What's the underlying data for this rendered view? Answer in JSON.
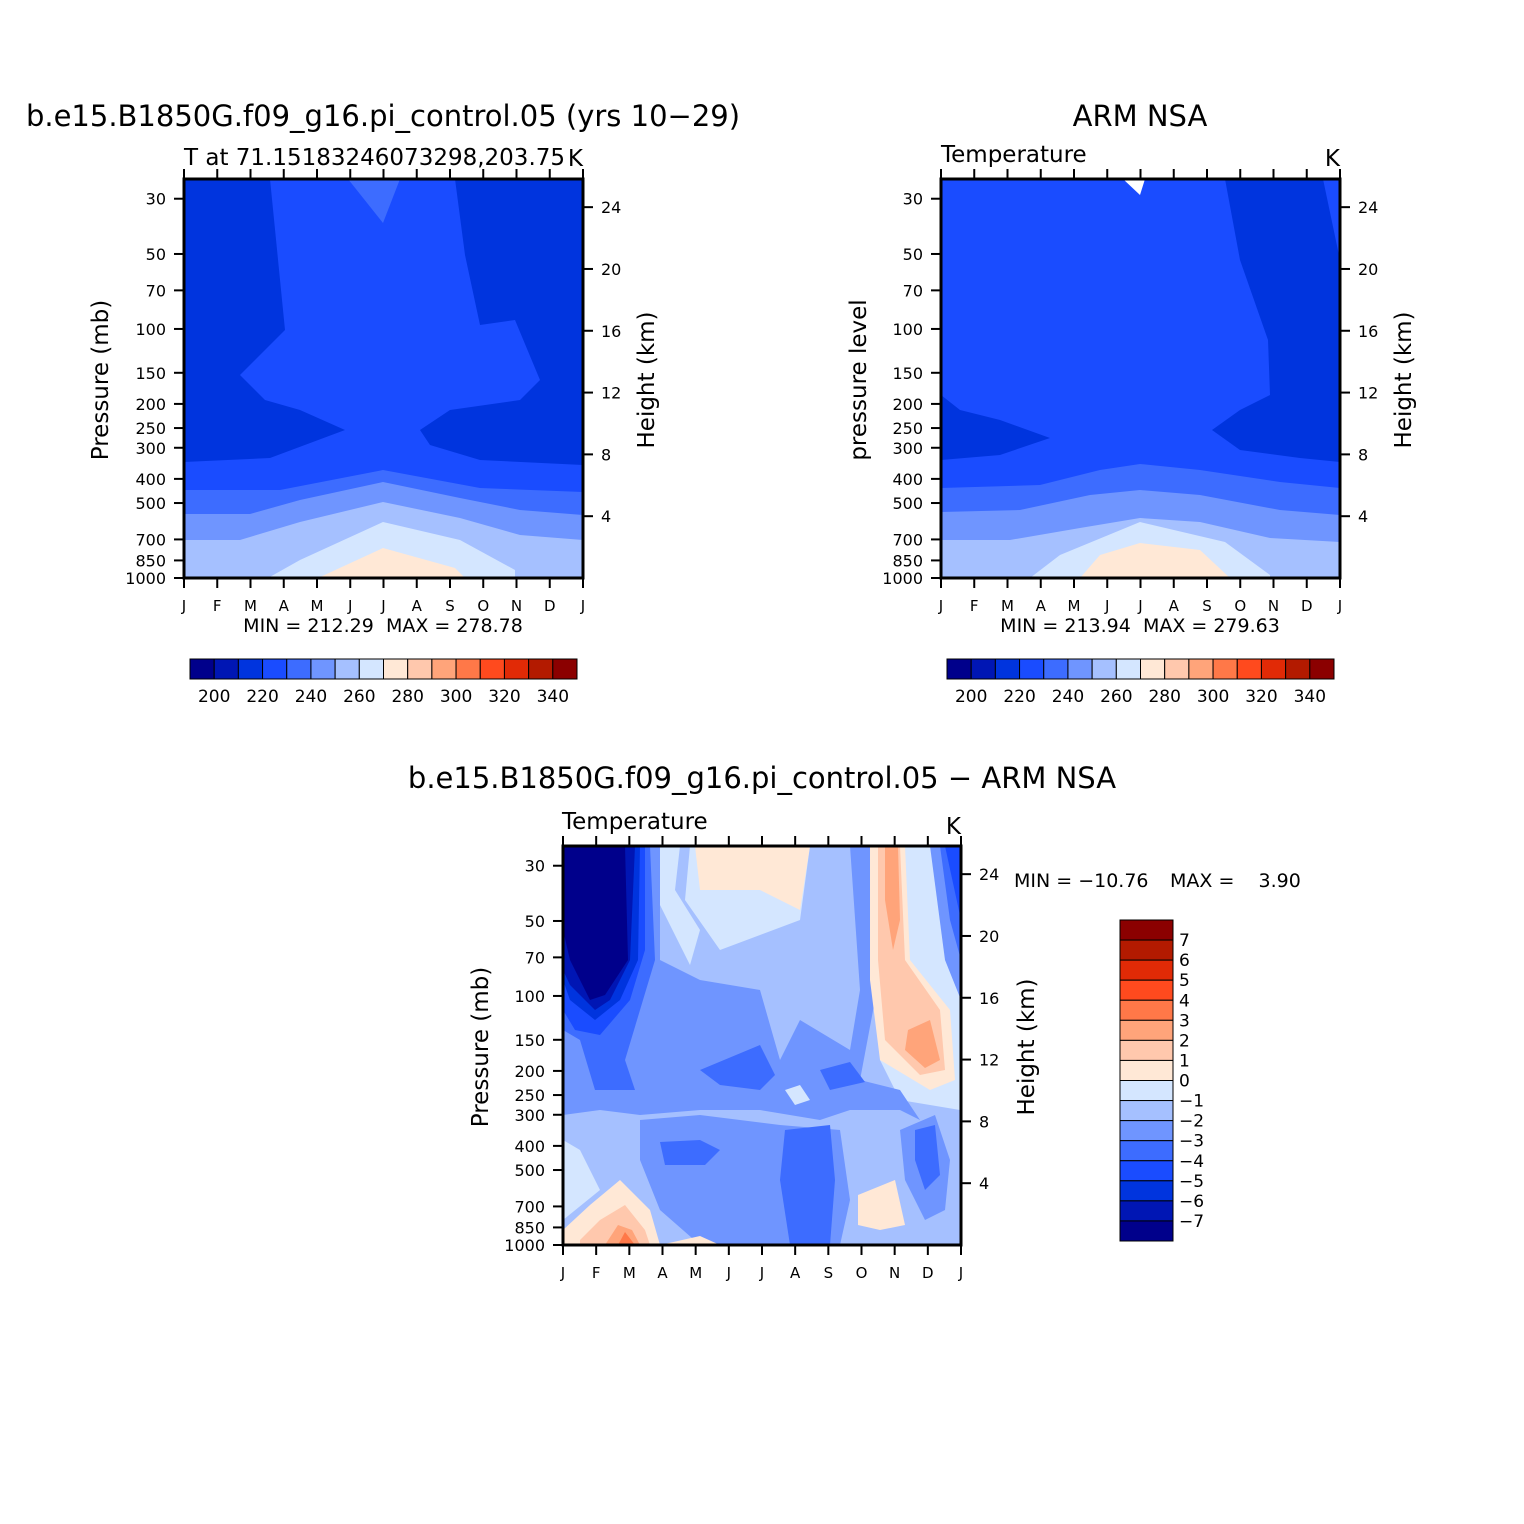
{
  "chart_data": [
    {
      "type": "heatmap",
      "title": "b.e15.B1850G.f09_g16.pi_control.05 (yrs 10−29)",
      "subtitle_left": "T at 71.15183246073298,203.75",
      "subtitle_right": "K",
      "ylabel": "Pressure (mb)",
      "ylabel_right": "Height (km)",
      "x_ticks": [
        "J",
        "F",
        "M",
        "A",
        "M",
        "J",
        "J",
        "A",
        "S",
        "O",
        "N",
        "D",
        "J"
      ],
      "pressure_ticks": [
        30,
        50,
        70,
        100,
        150,
        200,
        250,
        300,
        400,
        500,
        700,
        850,
        1000
      ],
      "height_ticks": [
        4,
        8,
        12,
        16,
        20,
        24
      ],
      "ylim": [
        1000,
        25
      ],
      "stats": "MIN = 212.29  MAX = 278.78",
      "colorbar_labels": [
        "200",
        "220",
        "240",
        "260",
        "280",
        "300",
        "320",
        "340"
      ],
      "palette": [
        "#00008b",
        "#0016b4",
        "#0034de",
        "#1a4cff",
        "#3d6cff",
        "#6f95ff",
        "#a5c0ff",
        "#d4e6ff",
        "#ffe8d6",
        "#ffc8ad",
        "#ffa47a",
        "#ff7848",
        "#ff4a1e",
        "#e12a06",
        "#b31a00",
        "#8b0000"
      ]
    },
    {
      "type": "heatmap",
      "title": "ARM NSA",
      "subtitle_left": "Temperature",
      "subtitle_right": "K",
      "ylabel": "pressure level",
      "ylabel_right": "Height (km)",
      "x_ticks": [
        "J",
        "F",
        "M",
        "A",
        "M",
        "J",
        "J",
        "A",
        "S",
        "O",
        "N",
        "D",
        "J"
      ],
      "pressure_ticks": [
        30,
        50,
        70,
        100,
        150,
        200,
        250,
        300,
        400,
        500,
        700,
        850,
        1000
      ],
      "height_ticks": [
        4,
        8,
        12,
        16,
        20,
        24
      ],
      "ylim": [
        1000,
        25
      ],
      "stats": "MIN = 213.94  MAX = 279.63",
      "colorbar_labels": [
        "200",
        "220",
        "240",
        "260",
        "280",
        "300",
        "320",
        "340"
      ],
      "palette": [
        "#00008b",
        "#0016b4",
        "#0034de",
        "#1a4cff",
        "#3d6cff",
        "#6f95ff",
        "#a5c0ff",
        "#d4e6ff",
        "#ffe8d6",
        "#ffc8ad",
        "#ffa47a",
        "#ff7848",
        "#ff4a1e",
        "#e12a06",
        "#b31a00",
        "#8b0000"
      ]
    },
    {
      "type": "heatmap",
      "title": "b.e15.B1850G.f09_g16.pi_control.05 − ARM NSA",
      "subtitle_left": "Temperature",
      "subtitle_right": "K",
      "ylabel": "Pressure (mb)",
      "ylabel_right": "Height (km)",
      "x_ticks": [
        "J",
        "F",
        "M",
        "A",
        "M",
        "J",
        "J",
        "A",
        "S",
        "O",
        "N",
        "D",
        "J"
      ],
      "pressure_ticks": [
        30,
        50,
        70,
        100,
        150,
        200,
        250,
        300,
        400,
        500,
        700,
        850,
        1000
      ],
      "height_ticks": [
        4,
        8,
        12,
        16,
        20,
        24
      ],
      "ylim": [
        1000,
        25
      ],
      "stats_min": "MIN = −10.76",
      "stats_max": "MAX =    3.90",
      "colorbar_labels": [
        "7",
        "6",
        "5",
        "4",
        "3",
        "2",
        "1",
        "0",
        "−1",
        "−2",
        "−3",
        "−4",
        "−5",
        "−6",
        "−7"
      ],
      "palette": [
        "#8b0000",
        "#b31a00",
        "#e12a06",
        "#ff4a1e",
        "#ff7848",
        "#ffa47a",
        "#ffc8ad",
        "#ffe8d6",
        "#d4e6ff",
        "#a5c0ff",
        "#6f95ff",
        "#3d6cff",
        "#1a4cff",
        "#0034de",
        "#0016b4",
        "#00008b"
      ]
    }
  ]
}
